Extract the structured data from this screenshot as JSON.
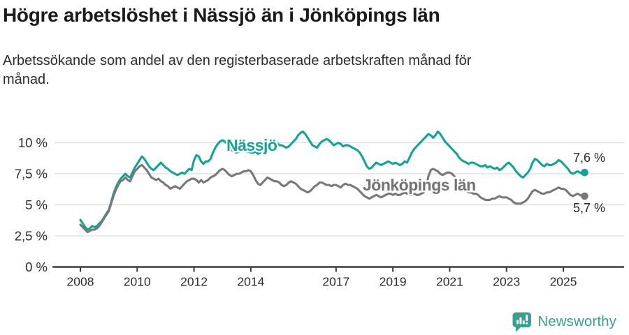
{
  "header": {
    "title": "Högre arbetslöshet i Nässjö än i Jönköpings län",
    "subtitle": "Arbetssökande som andel av den registerbaserade arbetskraften månad för månad."
  },
  "footer": {
    "brand": "Newsworthy",
    "brand_color": "#3a9e90",
    "logo_icon": "newsworthy-speech-bubble-bar-chart-icon"
  },
  "chart_data": {
    "type": "line",
    "title": "Högre arbetslöshet i Nässjö än i Jönköpings län",
    "subtitle": "Arbetssökande som andel av den registerbaserade arbetskraften månad för månad.",
    "grid": true,
    "legend_position": "inline-labels",
    "x_axis": {
      "start_year": 2008,
      "frequency": "monthly",
      "tick_years": [
        2008,
        2010,
        2012,
        2014,
        2017,
        2019,
        2021,
        2023,
        2025
      ],
      "tick_labels": [
        "2008",
        "2010",
        "2012",
        "2014",
        "2017",
        "2019",
        "2021",
        "2023",
        "2025"
      ]
    },
    "y_axis": {
      "unit": "percent",
      "range": [
        0,
        11.5
      ],
      "tick_values": [
        0,
        2.5,
        5,
        7.5,
        10
      ],
      "tick_labels": [
        "0 %",
        "2,5 %",
        "5 %",
        "7,5 %",
        "10 %"
      ]
    },
    "style": {
      "grid_color": "#dcdcdc",
      "axis_color": "#3b3b3b",
      "tick_text_color": "#2c2c2c",
      "end_label_color": "#282828"
    },
    "series": [
      {
        "name": "Nässjö",
        "color": "#16a294",
        "label_color": "#16a294",
        "end_label": "7,6 %",
        "end_value": 7.6,
        "values": [
          3.8,
          3.5,
          3.2,
          3.0,
          3.1,
          3.3,
          3.2,
          3.3,
          3.5,
          3.7,
          4.0,
          4.3,
          4.6,
          5.2,
          5.9,
          6.4,
          6.8,
          7.1,
          7.3,
          7.5,
          7.3,
          7.2,
          7.6,
          8.0,
          8.3,
          8.6,
          8.9,
          8.7,
          8.4,
          8.1,
          7.9,
          7.8,
          8.0,
          8.2,
          8.4,
          8.2,
          8.0,
          7.9,
          7.7,
          7.6,
          7.5,
          7.4,
          7.5,
          7.6,
          7.5,
          7.7,
          7.9,
          7.8,
          8.6,
          9.0,
          8.9,
          8.5,
          8.3,
          8.5,
          8.5,
          8.7,
          9.2,
          9.6,
          9.9,
          10.1,
          10.2,
          10.1,
          9.9,
          9.6,
          9.4,
          9.3,
          9.2,
          9.3,
          9.4,
          9.4,
          9.3,
          9.3,
          9.2,
          9.2,
          9.3,
          9.1,
          9.2,
          9.3,
          9.2,
          9.4,
          9.6,
          9.8,
          10.0,
          10.0,
          9.8,
          9.8,
          9.7,
          9.6,
          9.7,
          9.9,
          10.1,
          10.3,
          10.6,
          10.8,
          10.9,
          10.7,
          10.4,
          10.1,
          9.8,
          9.7,
          9.6,
          9.9,
          10.1,
          10.2,
          10.3,
          10.2,
          10.0,
          9.8,
          9.9,
          10.0,
          9.9,
          9.7,
          9.8,
          9.8,
          9.7,
          9.6,
          9.5,
          9.4,
          9.2,
          8.9,
          8.5,
          8.1,
          7.9,
          8.0,
          8.2,
          8.4,
          8.3,
          8.2,
          8.3,
          8.4,
          8.5,
          8.4,
          8.3,
          8.4,
          8.3,
          8.2,
          8.3,
          8.5,
          8.4,
          8.8,
          9.2,
          9.5,
          9.7,
          9.9,
          10.1,
          10.3,
          10.5,
          10.7,
          10.6,
          10.4,
          10.6,
          10.9,
          10.7,
          10.4,
          10.1,
          9.9,
          9.7,
          9.5,
          9.3,
          9.1,
          8.8,
          8.6,
          8.5,
          8.4,
          8.3,
          8.4,
          8.4,
          8.3,
          8.2,
          8.1,
          8.1,
          8.2,
          8.0,
          8.1,
          8.0,
          7.9,
          8.0,
          7.8,
          7.9,
          8.1,
          8.3,
          8.4,
          8.2,
          8.0,
          7.7,
          7.5,
          7.3,
          7.2,
          7.4,
          7.6,
          7.9,
          8.4,
          8.7,
          8.6,
          8.4,
          8.2,
          8.1,
          8.3,
          8.2,
          8.2,
          8.3,
          8.4,
          8.6,
          8.5,
          8.3,
          8.1,
          7.9,
          7.6,
          7.5,
          7.6,
          7.7,
          7.6,
          7.5,
          7.6
        ]
      },
      {
        "name": "Jönköpings län",
        "color": "#787878",
        "label_color": "#737373",
        "end_label": "5,7 %",
        "end_value": 5.7,
        "values": [
          3.4,
          3.2,
          3.0,
          2.8,
          2.9,
          3.0,
          3.0,
          3.1,
          3.3,
          3.6,
          3.9,
          4.2,
          4.5,
          5.1,
          5.7,
          6.2,
          6.6,
          6.9,
          7.0,
          7.2,
          7.0,
          6.9,
          7.3,
          7.7,
          7.9,
          8.1,
          8.2,
          8.0,
          7.8,
          7.5,
          7.2,
          7.1,
          7.0,
          7.1,
          6.9,
          6.8,
          6.6,
          6.5,
          6.3,
          6.4,
          6.5,
          6.4,
          6.3,
          6.5,
          6.7,
          6.9,
          7.0,
          7.1,
          7.1,
          7.0,
          6.8,
          7.0,
          6.8,
          6.9,
          7.0,
          7.2,
          7.3,
          7.4,
          7.6,
          7.8,
          7.9,
          7.8,
          7.6,
          7.4,
          7.3,
          7.4,
          7.5,
          7.5,
          7.6,
          7.7,
          7.7,
          7.8,
          7.7,
          7.4,
          7.0,
          6.7,
          6.6,
          6.8,
          7.0,
          7.2,
          7.1,
          7.0,
          6.9,
          6.9,
          6.8,
          6.6,
          6.5,
          6.6,
          6.8,
          6.9,
          6.8,
          6.7,
          6.5,
          6.3,
          6.2,
          6.1,
          6.0,
          6.1,
          6.3,
          6.5,
          6.6,
          6.8,
          6.8,
          6.7,
          6.6,
          6.6,
          6.5,
          6.6,
          6.6,
          6.5,
          6.4,
          6.6,
          6.7,
          6.6,
          6.6,
          6.5,
          6.4,
          6.3,
          6.1,
          5.9,
          5.7,
          5.6,
          5.5,
          5.6,
          5.7,
          5.8,
          5.7,
          5.6,
          5.7,
          5.8,
          5.9,
          5.9,
          5.8,
          5.9,
          5.8,
          5.8,
          5.9,
          6.0,
          5.9,
          5.8,
          5.8,
          5.9,
          5.8,
          5.8,
          5.9,
          6.0,
          6.5,
          7.3,
          7.8,
          7.9,
          7.8,
          7.7,
          7.5,
          7.4,
          7.5,
          7.6,
          7.6,
          7.5,
          7.3,
          7.0,
          6.7,
          6.4,
          6.2,
          6.1,
          6.0,
          6.0,
          5.9,
          5.9,
          5.8,
          5.6,
          5.5,
          5.4,
          5.4,
          5.4,
          5.5,
          5.5,
          5.6,
          5.7,
          5.6,
          5.6,
          5.6,
          5.5,
          5.4,
          5.2,
          5.1,
          5.1,
          5.1,
          5.2,
          5.3,
          5.5,
          5.8,
          6.1,
          6.2,
          6.1,
          6.0,
          5.9,
          5.9,
          6.0,
          6.0,
          6.1,
          6.2,
          6.3,
          6.4,
          6.3,
          6.3,
          6.2,
          6.0,
          5.8,
          5.7,
          5.8,
          5.9,
          5.8,
          5.7,
          5.7
        ]
      }
    ]
  }
}
